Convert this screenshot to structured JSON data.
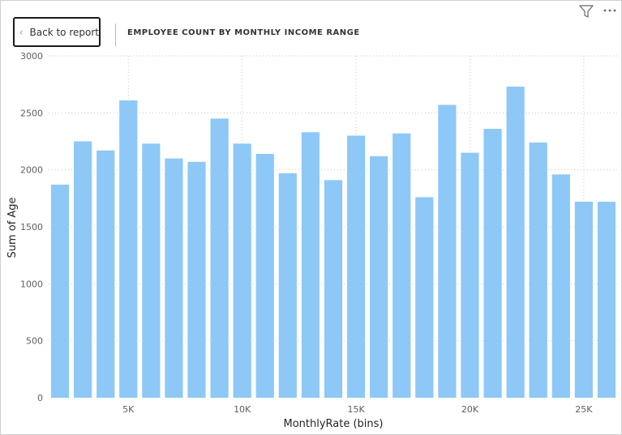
{
  "header": {
    "back_label": "Back to report",
    "title": "EMPLOYEE COUNT BY MONTHLY INCOME RANGE",
    "filter_icon": "filter-icon",
    "more_icon": "more-options-icon"
  },
  "chart_data": {
    "type": "bar",
    "title": "",
    "xlabel": "MonthlyRate (bins)",
    "ylabel": "Sum of Age",
    "ylim": [
      0,
      3000
    ],
    "yticks": [
      0,
      500,
      1000,
      1500,
      2000,
      2500,
      3000
    ],
    "xticks": [
      {
        "value": 5000,
        "label": "5K"
      },
      {
        "value": 10000,
        "label": "10K"
      },
      {
        "value": 15000,
        "label": "15K"
      },
      {
        "value": 20000,
        "label": "20K"
      },
      {
        "value": 25000,
        "label": "25K"
      }
    ],
    "bin_width": 1000,
    "x_range": [
      1500,
      26500
    ],
    "bins": [
      2000,
      3000,
      4000,
      5000,
      6000,
      7000,
      8000,
      9000,
      10000,
      11000,
      12000,
      13000,
      14000,
      15000,
      16000,
      17000,
      18000,
      19000,
      20000,
      21000,
      22000,
      23000,
      24000,
      25000,
      26000
    ],
    "values": [
      1870,
      2250,
      2170,
      2610,
      2230,
      2100,
      2070,
      2450,
      2230,
      2140,
      1970,
      2330,
      1910,
      2300,
      2120,
      2320,
      1760,
      2570,
      2150,
      2360,
      2730,
      2240,
      1960,
      1720,
      1720
    ],
    "bar_color": "#8DC8F7",
    "grid": true,
    "gridline_color": "#c8c8c8"
  }
}
